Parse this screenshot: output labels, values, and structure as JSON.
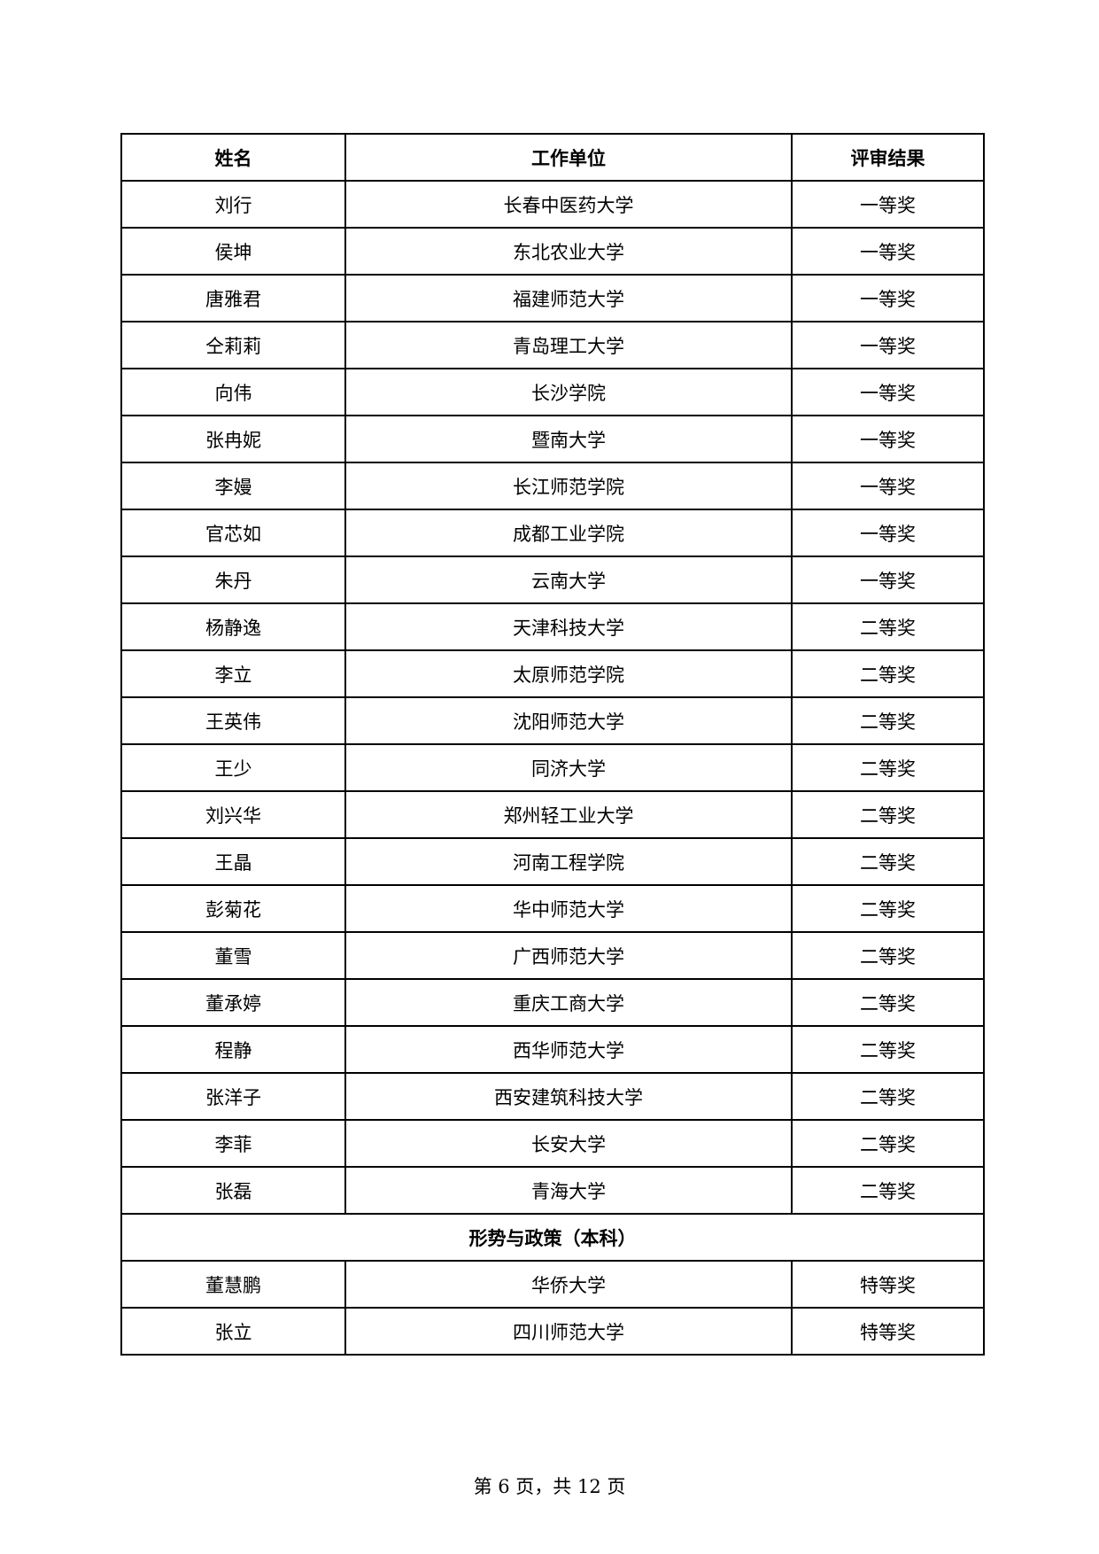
{
  "table": {
    "headers": [
      "姓名",
      "工作单位",
      "评审结果"
    ],
    "rows_a": [
      [
        "刘行",
        "长春中医药大学",
        "一等奖"
      ],
      [
        "侯坤",
        "东北农业大学",
        "一等奖"
      ],
      [
        "唐雅君",
        "福建师范大学",
        "一等奖"
      ],
      [
        "仝莉莉",
        "青岛理工大学",
        "一等奖"
      ],
      [
        "向伟",
        "长沙学院",
        "一等奖"
      ],
      [
        "张冉妮",
        "暨南大学",
        "一等奖"
      ],
      [
        "李嫚",
        "长江师范学院",
        "一等奖"
      ],
      [
        "官芯如",
        "成都工业学院",
        "一等奖"
      ],
      [
        "朱丹",
        "云南大学",
        "一等奖"
      ],
      [
        "杨静逸",
        "天津科技大学",
        "二等奖"
      ],
      [
        "李立",
        "太原师范学院",
        "二等奖"
      ],
      [
        "王英伟",
        "沈阳师范大学",
        "二等奖"
      ],
      [
        "王少",
        "同济大学",
        "二等奖"
      ],
      [
        "刘兴华",
        "郑州轻工业大学",
        "二等奖"
      ],
      [
        "王晶",
        "河南工程学院",
        "二等奖"
      ],
      [
        "彭菊花",
        "华中师范大学",
        "二等奖"
      ],
      [
        "董雪",
        "广西师范大学",
        "二等奖"
      ],
      [
        "董承婷",
        "重庆工商大学",
        "二等奖"
      ],
      [
        "程静",
        "西华师范大学",
        "二等奖"
      ],
      [
        "张洋子",
        "西安建筑科技大学",
        "二等奖"
      ],
      [
        "李菲",
        "长安大学",
        "二等奖"
      ],
      [
        "张磊",
        "青海大学",
        "二等奖"
      ]
    ],
    "section_title": "形势与政策（本科）",
    "rows_b": [
      [
        "董慧鹏",
        "华侨大学",
        "特等奖"
      ],
      [
        "张立",
        "四川师范大学",
        "特等奖"
      ]
    ]
  },
  "footer": {
    "page_label": "第 6 页，共 12 页"
  }
}
